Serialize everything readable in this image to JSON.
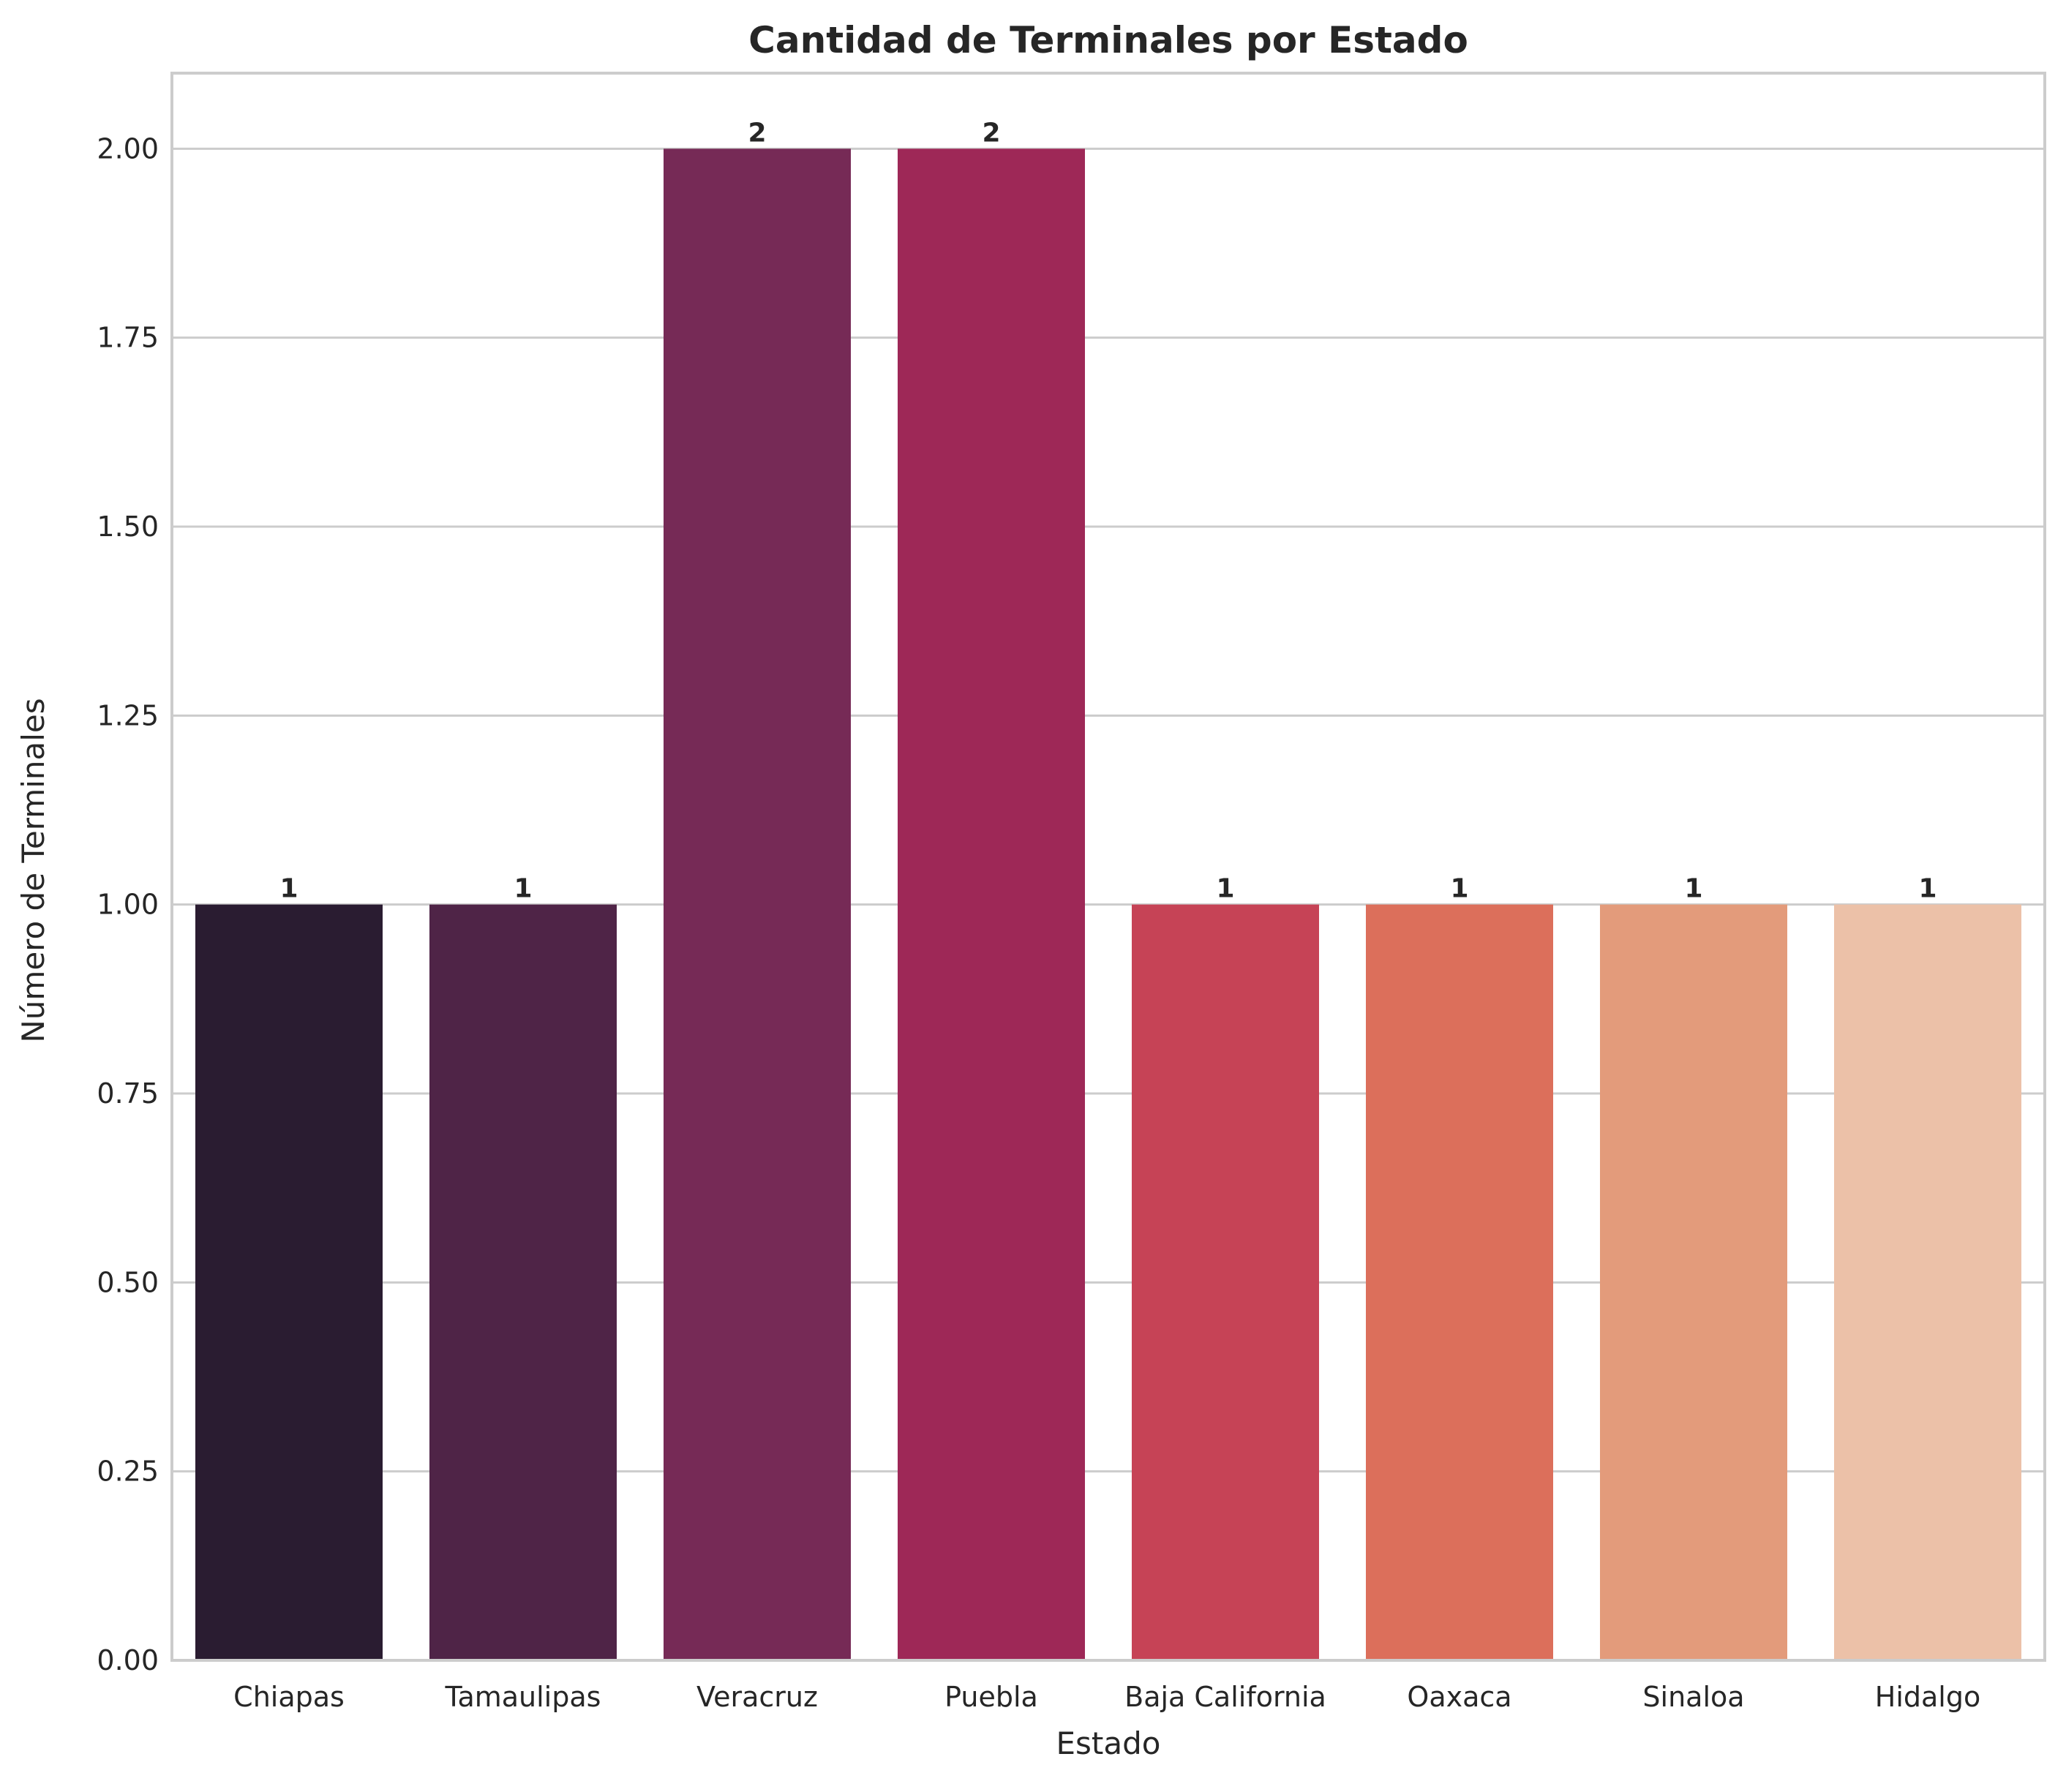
{
  "chart_data": {
    "type": "bar",
    "title": "Cantidad de Terminales por Estado",
    "xlabel": "Estado",
    "ylabel": "Número de Terminales",
    "categories": [
      "Chiapas",
      "Tamaulipas",
      "Veracruz",
      "Puebla",
      "Baja California",
      "Oaxaca",
      "Sinaloa",
      "Hidalgo"
    ],
    "values": [
      1,
      1,
      2,
      2,
      1,
      1,
      1,
      1
    ],
    "value_labels": [
      "1",
      "1",
      "2",
      "2",
      "1",
      "1",
      "1",
      "1"
    ],
    "colors": [
      "#2a1c31",
      "#4f2447",
      "#762a56",
      "#9e2857",
      "#c64356",
      "#dc6f5b",
      "#e39b7b",
      "#ecc1a8"
    ],
    "ylim": [
      0,
      2.1
    ],
    "yticks": [
      0,
      0.25,
      0.5,
      0.75,
      1.0,
      1.25,
      1.5,
      1.75,
      2.0
    ],
    "ytick_labels": [
      "0.00",
      "0.25",
      "0.50",
      "0.75",
      "1.00",
      "1.25",
      "1.50",
      "1.75",
      "2.00"
    ],
    "grid": true,
    "grid_color": "#cccccc",
    "spine_color": "#cccccc"
  }
}
